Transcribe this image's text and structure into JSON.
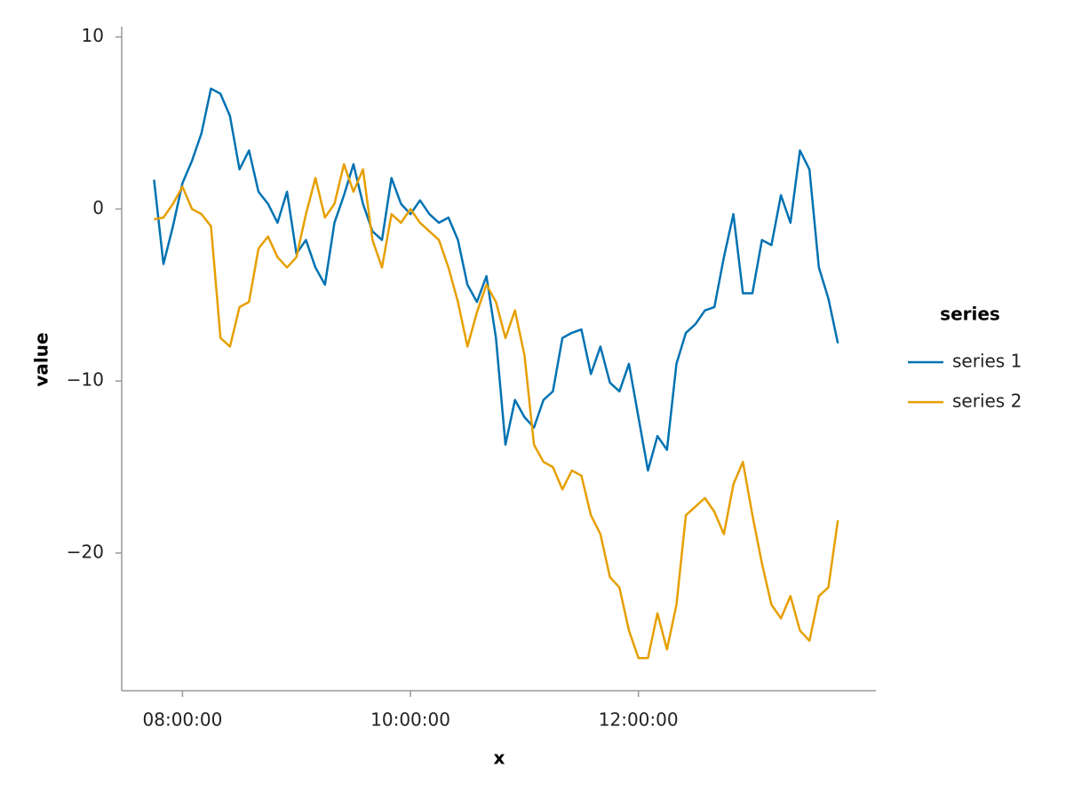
{
  "chart_data": {
    "type": "line",
    "x_label": "x",
    "y_label": "value",
    "legend_title": "series",
    "legend": "right",
    "grid": false,
    "x": [
      "07:45:00",
      "07:50:00",
      "07:55:00",
      "08:00:00",
      "08:05:00",
      "08:10:00",
      "08:15:00",
      "08:20:00",
      "08:25:00",
      "08:30:00",
      "08:35:00",
      "08:40:00",
      "08:45:00",
      "08:50:00",
      "08:55:00",
      "09:00:00",
      "09:05:00",
      "09:10:00",
      "09:15:00",
      "09:20:00",
      "09:25:00",
      "09:30:00",
      "09:35:00",
      "09:40:00",
      "09:45:00",
      "09:50:00",
      "09:55:00",
      "10:00:00",
      "10:05:00",
      "10:10:00",
      "10:15:00",
      "10:20:00",
      "10:25:00",
      "10:30:00",
      "10:35:00",
      "10:40:00",
      "10:45:00",
      "10:50:00",
      "10:55:00",
      "11:00:00",
      "11:05:00",
      "11:10:00",
      "11:15:00",
      "11:20:00",
      "11:25:00",
      "11:30:00",
      "11:35:00",
      "11:40:00",
      "11:45:00",
      "11:50:00",
      "11:55:00",
      "12:00:00",
      "12:05:00",
      "12:10:00",
      "12:15:00",
      "12:20:00",
      "12:25:00",
      "12:30:00",
      "12:35:00",
      "12:40:00",
      "12:45:00",
      "12:50:00",
      "12:55:00",
      "13:00:00",
      "13:05:00",
      "13:10:00",
      "13:15:00",
      "13:20:00",
      "13:25:00",
      "13:30:00",
      "13:35:00",
      "13:40:00",
      "13:45:00"
    ],
    "series": [
      {
        "name": "series 1",
        "color": "#0072b2",
        "values": [
          1.7,
          -3.2,
          -1.0,
          1.5,
          2.8,
          4.4,
          7.0,
          6.7,
          5.4,
          2.3,
          3.4,
          1.0,
          0.3,
          -0.8,
          1.0,
          -2.6,
          -1.8,
          -3.4,
          -4.4,
          -0.8,
          0.8,
          2.6,
          0.3,
          -1.3,
          -1.8,
          1.8,
          0.3,
          -0.3,
          0.5,
          -0.3,
          -0.8,
          -0.5,
          -1.8,
          -4.4,
          -5.4,
          -3.9,
          -7.5,
          -13.7,
          -11.1,
          -12.1,
          -12.7,
          -11.1,
          -10.6,
          -7.5,
          -7.2,
          -7.0,
          -9.6,
          -8.0,
          -10.1,
          -10.6,
          -9.0,
          -12.1,
          -15.2,
          -13.2,
          -14.0,
          -9.0,
          -7.2,
          -6.7,
          -5.9,
          -5.7,
          -2.8,
          -0.3,
          -4.9,
          -4.9,
          -1.8,
          -2.1,
          0.8,
          -0.8,
          3.4,
          2.3,
          -3.4,
          -5.2,
          -7.8
        ]
      },
      {
        "name": "series 2",
        "color": "#e69f00",
        "values": [
          -0.6,
          -0.5,
          0.3,
          1.3,
          0,
          -0.3,
          -1.0,
          -7.5,
          -8.0,
          -5.7,
          -5.4,
          -2.3,
          -1.6,
          -2.8,
          -3.4,
          -2.8,
          -0.3,
          1.8,
          -0.5,
          0.3,
          2.6,
          1.0,
          2.3,
          -1.8,
          -3.4,
          -0.3,
          -0.8,
          0,
          -0.8,
          -1.3,
          -1.8,
          -3.4,
          -5.4,
          -8.0,
          -6.0,
          -4.4,
          -5.4,
          -7.5,
          -5.9,
          -8.5,
          -13.7,
          -14.7,
          -15.0,
          -16.3,
          -15.2,
          -15.5,
          -17.8,
          -18.9,
          -21.4,
          -22.0,
          -24.5,
          -26.1,
          -26.1,
          -23.5,
          -25.6,
          -23.0,
          -17.8,
          -17.3,
          -16.8,
          -17.6,
          -18.9,
          -16.0,
          -14.7,
          -17.8,
          -20.6,
          -23.0,
          -23.8,
          -22.5,
          -24.5,
          -25.1,
          -22.5,
          -22.0,
          -18.1
        ]
      }
    ],
    "xlim": [
      "07:28:00",
      "14:05:00"
    ],
    "xticks": [
      "08:00:00",
      "10:00:00",
      "12:00:00"
    ],
    "ylim": [
      -28,
      10.6
    ],
    "yticks": [
      {
        "value": -20,
        "label": "−20"
      },
      {
        "value": -10,
        "label": "−10"
      },
      0,
      10
    ]
  }
}
